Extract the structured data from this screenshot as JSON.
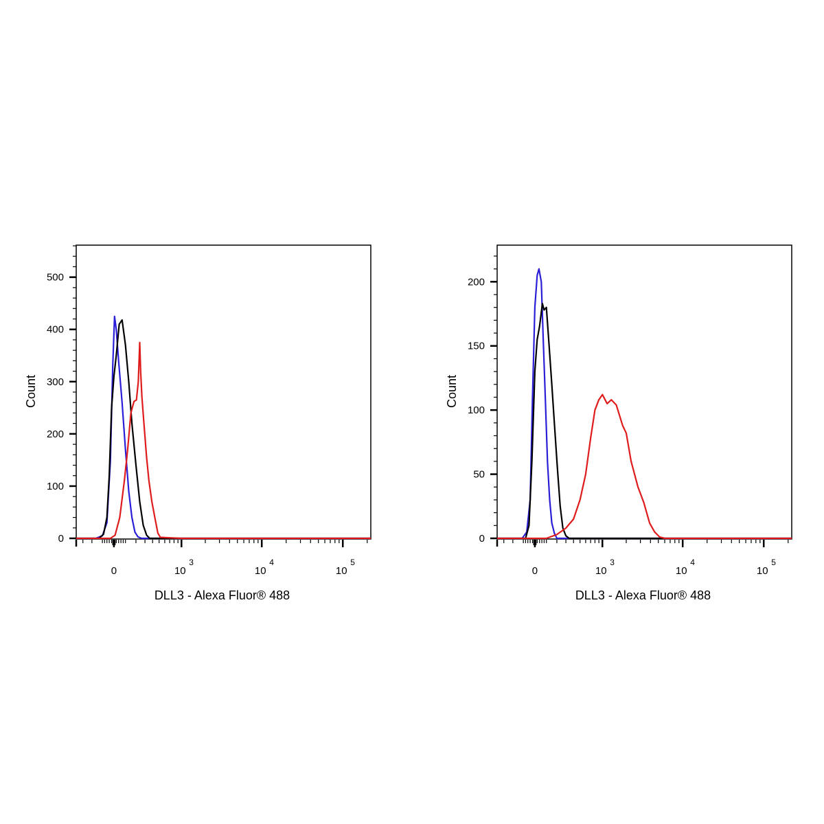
{
  "chart_data": [
    {
      "type": "line",
      "xlabel": "DLL3 - Alexa Fluor® 488",
      "ylabel": "Count",
      "xscale": "biexponential",
      "ylim": [
        0,
        560
      ],
      "yticks": [
        0,
        100,
        200,
        300,
        400,
        500
      ],
      "xticks": [
        {
          "value": 0,
          "base": "0",
          "exp": ""
        },
        {
          "value": 1000,
          "base": "10",
          "exp": "3"
        },
        {
          "value": 10000,
          "base": "10",
          "exp": "4"
        },
        {
          "value": 100000,
          "base": "10",
          "exp": "5"
        }
      ],
      "series": [
        {
          "color": "#2a1ed6",
          "x": [
            -1000,
            -160,
            -100,
            -60,
            -30,
            -10,
            5,
            20,
            40,
            70,
            100,
            130,
            160,
            190,
            220,
            260,
            300,
            1000,
            250000
          ],
          "y": [
            0,
            0,
            5,
            30,
            150,
            330,
            425,
            400,
            340,
            260,
            170,
            90,
            40,
            12,
            3,
            0,
            0,
            0,
            0
          ]
        },
        {
          "color": "#000000",
          "x": [
            -1000,
            -130,
            -90,
            -60,
            -40,
            -20,
            0,
            20,
            45,
            70,
            100,
            130,
            160,
            200,
            240,
            280,
            320,
            360,
            1000,
            250000
          ],
          "y": [
            0,
            0,
            8,
            40,
            120,
            250,
            310,
            350,
            410,
            418,
            370,
            300,
            220,
            140,
            70,
            25,
            6,
            0,
            0,
            0
          ]
        },
        {
          "color": "#e01b1b",
          "x": [
            -1000,
            -30,
            10,
            50,
            90,
            120,
            150,
            180,
            205,
            225,
            240,
            250,
            265,
            290,
            320,
            350,
            390,
            440,
            480,
            520,
            1000,
            250000
          ],
          "y": [
            0,
            0,
            6,
            40,
            110,
            170,
            240,
            262,
            265,
            300,
            375,
            320,
            270,
            215,
            155,
            110,
            70,
            35,
            10,
            2,
            0,
            0
          ]
        }
      ]
    },
    {
      "type": "line",
      "xlabel": "DLL3 - Alexa Fluor® 488",
      "ylabel": "Count",
      "xscale": "biexponential",
      "ylim": [
        0,
        228
      ],
      "yticks": [
        0,
        50,
        100,
        150,
        200
      ],
      "xticks": [
        {
          "value": 0,
          "base": "0",
          "exp": ""
        },
        {
          "value": 1000,
          "base": "10",
          "exp": "3"
        },
        {
          "value": 10000,
          "base": "10",
          "exp": "4"
        },
        {
          "value": 100000,
          "base": "10",
          "exp": "5"
        }
      ],
      "series": [
        {
          "color": "#2a1ed6",
          "x": [
            -1000,
            -110,
            -70,
            -40,
            -20,
            0,
            20,
            35,
            55,
            70,
            90,
            110,
            130,
            150,
            175,
            200,
            230,
            1000,
            250000
          ],
          "y": [
            0,
            0,
            5,
            30,
            110,
            180,
            205,
            210,
            200,
            160,
            110,
            60,
            30,
            12,
            4,
            0,
            0,
            0,
            0
          ]
        },
        {
          "color": "#000000",
          "x": [
            -1000,
            -80,
            -50,
            -25,
            0,
            20,
            40,
            65,
            80,
            100,
            125,
            150,
            175,
            205,
            235,
            265,
            300,
            340,
            1000,
            250000
          ],
          "y": [
            0,
            0,
            10,
            60,
            130,
            155,
            165,
            183,
            178,
            180,
            150,
            120,
            90,
            55,
            25,
            8,
            2,
            0,
            0,
            0
          ]
        },
        {
          "color": "#e01b1b",
          "x": [
            -1000,
            100,
            200,
            300,
            400,
            500,
            600,
            700,
            800,
            900,
            1000,
            1150,
            1300,
            1500,
            1800,
            2000,
            2300,
            2800,
            3300,
            3900,
            4500,
            5200,
            6000,
            250000
          ],
          "y": [
            0,
            0,
            3,
            8,
            15,
            30,
            50,
            78,
            100,
            108,
            112,
            105,
            108,
            104,
            88,
            82,
            60,
            40,
            28,
            12,
            5,
            1,
            0,
            0
          ]
        }
      ]
    }
  ]
}
